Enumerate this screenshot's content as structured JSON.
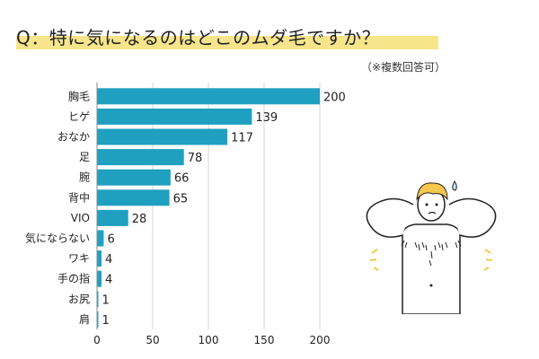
{
  "title": "Q：特に気になるのはどこのムダ毛ですか？",
  "note": "（※複数回答可）",
  "colors": {
    "bar": "#1fa0c0",
    "grid": "#d5d5d5",
    "highlight": "#f7e58c"
  },
  "chart_data": {
    "type": "bar",
    "orientation": "horizontal",
    "categories": [
      "胸毛",
      "ヒゲ",
      "おなか",
      "足",
      "腕",
      "背中",
      "VIO",
      "気にならない",
      "ワキ",
      "手の指",
      "お尻",
      "肩"
    ],
    "values": [
      200,
      139,
      117,
      78,
      66,
      65,
      28,
      6,
      4,
      4,
      1,
      1
    ],
    "xlim": [
      0,
      200
    ],
    "xticks": [
      0,
      50,
      100,
      150,
      200
    ],
    "grid": true,
    "title": "Q：特に気になるのはどこのムダ毛ですか？",
    "xlabel": "",
    "ylabel": ""
  }
}
